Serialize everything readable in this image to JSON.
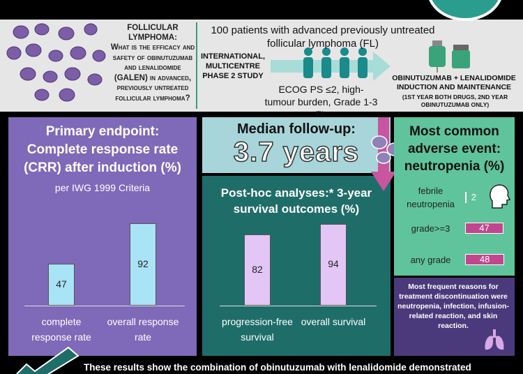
{
  "study": {
    "question_title": "FOLLICULAR LYMPHOMA:",
    "question": "What is the efficacy and safety of obinutuzumab and lenalidomide (GALEN) in advanced, previously untreated follicular lymphoma?",
    "population": "100 patients with advanced previously untreated follicular lymphoma (FL)",
    "design": "INTERNATIONAL, MULTICENTRE PHASE 2 STUDY",
    "criteria": "ECOG PS ≤2, high-tumour burden, Grade 1-3 FL",
    "treatment": "OBINUTUZUMAB + LENALIDOMIDE INDUCTION AND MAINTENANCE",
    "treatment_note": "(1ST YEAR BOTH DRUGS, 2ND YEAR OBINUTUZUMAB ONLY)"
  },
  "primary_endpoint": {
    "type": "bar",
    "title": "Primary endpoint: Complete response rate (CRR) after induction (%)",
    "subtitle": "per IWG 1999 Criteria",
    "categories": [
      "complete response rate",
      "overall response rate"
    ],
    "values": [
      47,
      92
    ],
    "color": "#a9e3f6"
  },
  "follow_up": {
    "label": "Median follow-up:",
    "value": "3.7 years"
  },
  "survival": {
    "type": "bar",
    "title": "Post-hoc analyses:* 3-year survival outcomes (%)",
    "categories": [
      "progression-free survival",
      "overall survival"
    ],
    "values": [
      82,
      94
    ],
    "color": "#e3c6f5"
  },
  "adverse_events": {
    "type": "hbar",
    "title": "Most common adverse event: neutropenia (%)",
    "categories": [
      "febrile neutropenia",
      "grade>=3",
      "any grade"
    ],
    "values": [
      2,
      47,
      48
    ],
    "color": "#c2468e"
  },
  "discontinuation": "Most frequent reasons for treatment discontinuation were neutropenia, infection, infusion-related reaction, and skin reaction.",
  "conclusion": "These results show the combination of obinutuzumab with lenalidomide demonstrated"
}
